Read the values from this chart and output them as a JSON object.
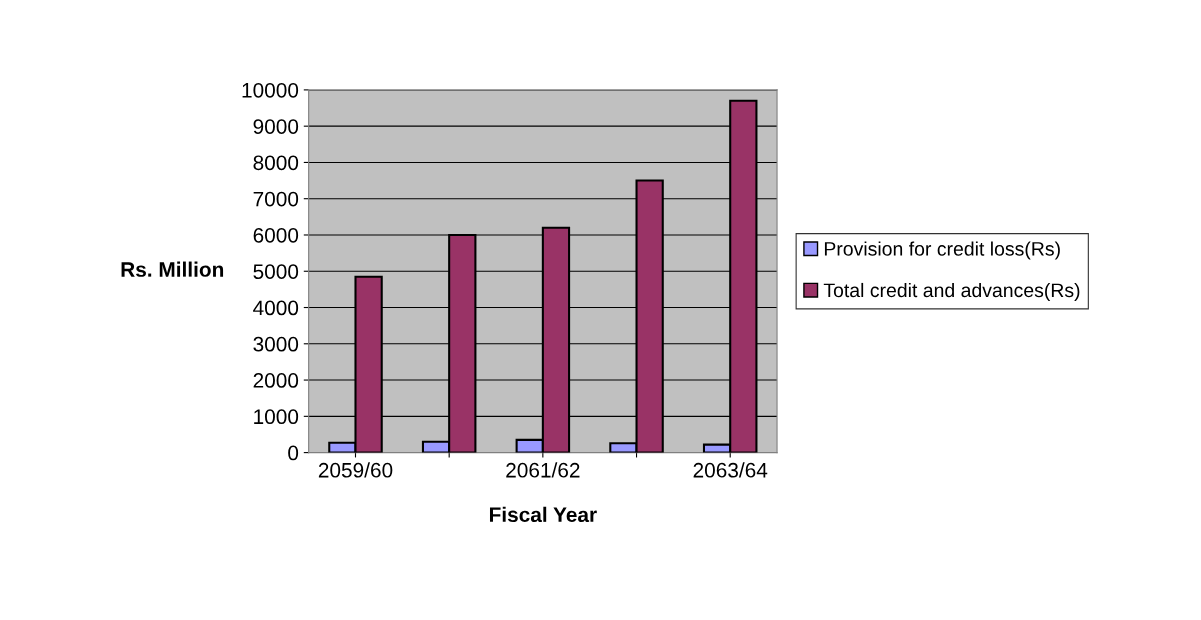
{
  "chart_data": {
    "type": "bar",
    "xlabel": "Fiscal Year",
    "ylabel": "Rs. Million",
    "categories": [
      "2059/60",
      null,
      "2061/62",
      null,
      "2063/64"
    ],
    "series": [
      {
        "name": "Provision for credit loss(Rs)",
        "color": "#9999ff",
        "values": [
          270,
          300,
          350,
          260,
          220
        ]
      },
      {
        "name": "Total credit and advances(Rs)",
        "color": "#993366",
        "values": [
          4850,
          6000,
          6200,
          7500,
          9700
        ]
      }
    ],
    "ylim": [
      0,
      10000
    ],
    "yticks": [
      0,
      1000,
      2000,
      3000,
      4000,
      5000,
      6000,
      7000,
      8000,
      9000,
      10000
    ],
    "grid": "y",
    "legend": "right"
  }
}
